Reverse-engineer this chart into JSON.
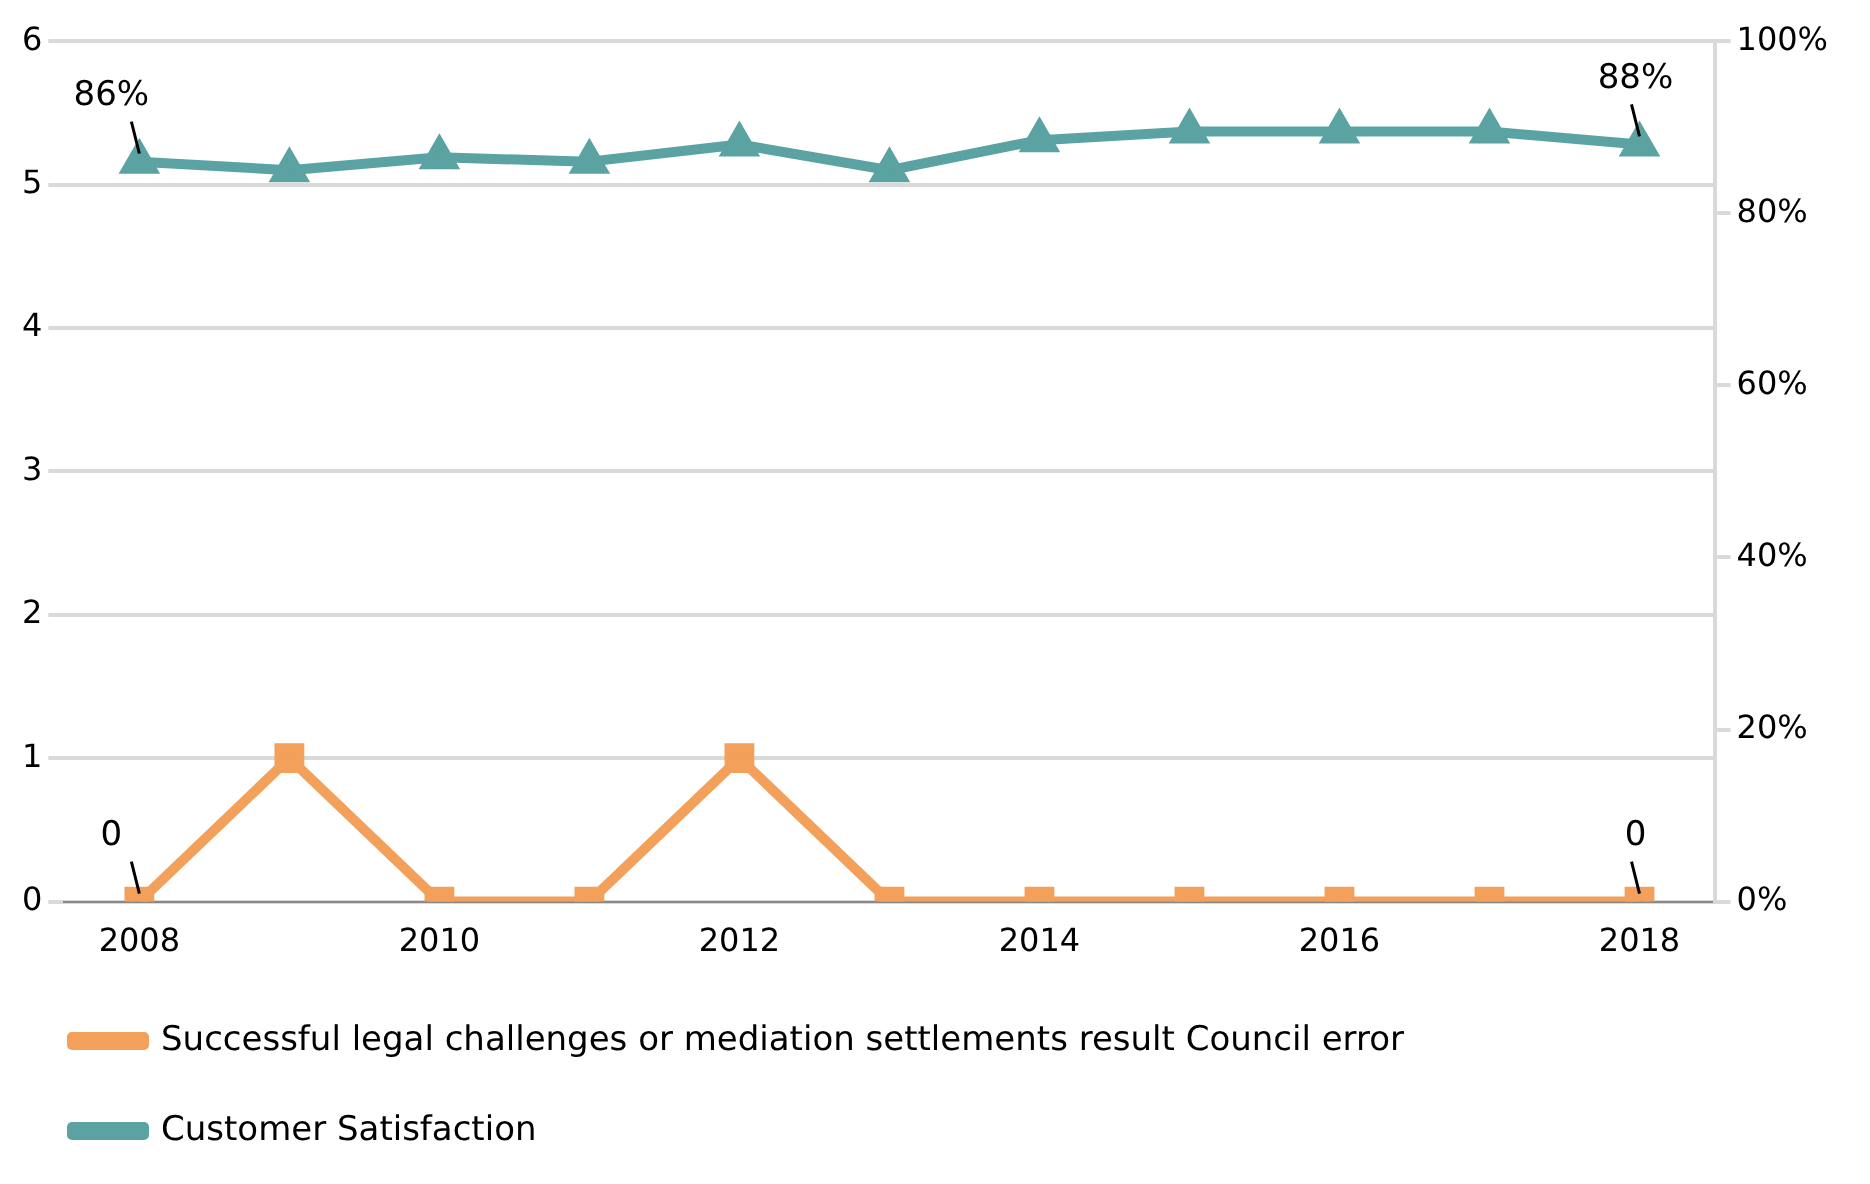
{
  "chart_data": {
    "type": "line",
    "categories": [
      "2008",
      null,
      "2010",
      null,
      "2012",
      null,
      "2014",
      null,
      "2016",
      null,
      "2018"
    ],
    "series": [
      {
        "name": "Successful legal challenges or mediation settlements result Council error",
        "color": "#f2a05a",
        "marker": "square",
        "values": [
          0,
          1,
          0,
          0,
          1,
          0,
          0,
          0,
          0,
          0,
          0
        ],
        "value_labels": [
          "0",
          null,
          null,
          null,
          null,
          null,
          null,
          null,
          null,
          null,
          "0"
        ]
      },
      {
        "name": "Customer Satisfaction",
        "color": "#5ba3a3",
        "marker": "triangle",
        "axis": "y2",
        "values": [
          86,
          85,
          86.5,
          86,
          88,
          85,
          88.5,
          89.5,
          89.5,
          89.5,
          88
        ],
        "value_labels": [
          "86%",
          null,
          null,
          null,
          null,
          null,
          null,
          null,
          null,
          null,
          "88%"
        ]
      }
    ],
    "ylim": [
      0,
      6
    ],
    "yticks": [
      0,
      1,
      2,
      3,
      4,
      5,
      6
    ],
    "y2lim": [
      0,
      100
    ],
    "y2ticks": [
      {
        "value": 0,
        "label": "0%"
      },
      {
        "value": 20,
        "label": "20%"
      },
      {
        "value": 40,
        "label": "40%"
      },
      {
        "value": 60,
        "label": "60%"
      },
      {
        "value": 80,
        "label": "80%"
      },
      {
        "value": 100,
        "label": "100%"
      }
    ],
    "grid": "y",
    "legend": "bottom",
    "line_style": "solid"
  }
}
